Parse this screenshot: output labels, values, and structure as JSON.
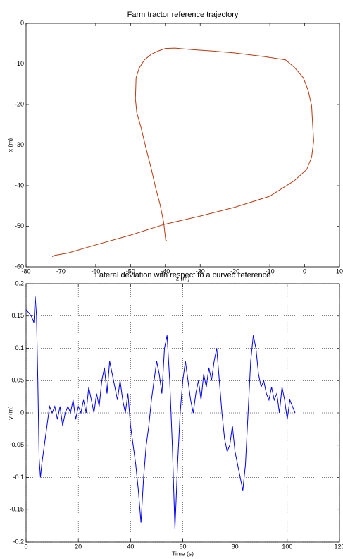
{
  "chart_data": [
    {
      "type": "line",
      "title": "Farm tractor reference trajectory",
      "xlabel": "z (m)",
      "ylabel": "x (m)",
      "xlim": [
        -80,
        10
      ],
      "xticks": [
        -80,
        -70,
        -60,
        -50,
        -40,
        -30,
        -20,
        -10,
        0,
        10
      ],
      "ylim": [
        -60,
        0
      ],
      "yticks": [
        -60,
        -50,
        -40,
        -30,
        -20,
        -10,
        0
      ],
      "grid": false,
      "series": [
        {
          "color": "#b83a10",
          "x": [
            -72.5,
            -71.9,
            -68,
            -60,
            -50,
            -40.5,
            -30,
            -20,
            -10,
            -6.9,
            -3,
            0.6,
            2,
            2.6,
            2.3,
            2,
            1,
            -0.4,
            -3,
            -5.5,
            -11.6,
            -20,
            -26.8,
            -32,
            -37.3,
            -40,
            -42,
            -44,
            -46,
            -47.5,
            -48.4,
            -48.6,
            -48.2,
            -47,
            -45.5,
            -44,
            -42.8,
            -41.5,
            -40.5,
            -39.9,
            -39.6
          ],
          "values": [
            -57.5,
            -57.2,
            -56.6,
            -54.6,
            -52.2,
            -49.6,
            -47.5,
            -45.3,
            -42.6,
            -40.9,
            -38.8,
            -36,
            -33,
            -29,
            -25,
            -20.3,
            -16.5,
            -13.4,
            -10.8,
            -9,
            -8.2,
            -7.3,
            -6.8,
            -6.5,
            -6.1,
            -6.2,
            -6.8,
            -7.6,
            -9,
            -11,
            -13.4,
            -18.6,
            -22,
            -25.6,
            -31,
            -36,
            -40.5,
            -44.7,
            -49,
            -53.4,
            -53.6
          ]
        }
      ]
    },
    {
      "type": "line",
      "title": "Lateral deviation with respect to a curved reference",
      "xlabel": "Time (s)",
      "ylabel": "y (m)",
      "xlim": [
        0,
        120
      ],
      "xticks": [
        0,
        20,
        40,
        60,
        80,
        100,
        120
      ],
      "ylim": [
        -0.2,
        0.2
      ],
      "yticks": [
        -0.2,
        -0.15,
        -0.1,
        -0.05,
        0,
        0.05,
        0.1,
        0.15,
        0.2
      ],
      "grid": true,
      "series": [
        {
          "color": "#0000ee",
          "x": [
            0,
            1,
            2,
            3,
            3.5,
            4,
            4.5,
            5,
            5.5,
            6,
            7,
            8,
            9,
            10,
            11,
            12,
            13,
            14,
            15,
            16,
            17,
            18,
            19,
            20,
            21,
            22,
            23,
            24,
            25,
            26,
            27,
            28,
            29,
            30,
            31,
            32,
            33,
            34,
            35,
            36,
            37,
            38,
            39,
            40,
            41,
            42,
            43,
            44,
            45,
            46,
            47,
            48,
            49,
            50,
            51,
            52,
            53,
            54,
            55,
            56,
            57,
            58,
            59,
            60,
            61,
            62,
            63,
            64,
            65,
            66,
            67,
            68,
            69,
            70,
            71,
            72,
            73,
            74,
            75,
            76,
            77,
            78,
            79,
            80,
            81,
            82,
            83,
            84,
            85,
            86,
            87,
            88,
            89,
            90,
            91,
            92,
            93,
            94,
            95,
            96,
            97,
            98,
            99,
            100,
            101,
            102,
            103
          ],
          "values": [
            0.16,
            0.155,
            0.15,
            0.14,
            0.18,
            0.15,
            0.05,
            -0.07,
            -0.1,
            -0.08,
            -0.05,
            -0.02,
            0.01,
            0,
            0.01,
            -0.01,
            0.01,
            -0.02,
            0,
            0.01,
            0,
            0.02,
            -0.01,
            0.01,
            0,
            0.02,
            0,
            0.04,
            0.02,
            0,
            0.03,
            0.01,
            0.05,
            0.07,
            0.03,
            0.08,
            0.06,
            0.04,
            0.02,
            0.05,
            0.02,
            0,
            0.03,
            -0.02,
            -0.05,
            -0.08,
            -0.12,
            -0.17,
            -0.1,
            -0.05,
            -0.02,
            0.02,
            0.05,
            0.08,
            0.06,
            0.03,
            0.1,
            0.12,
            0.05,
            -0.05,
            -0.18,
            -0.08,
            0,
            0.05,
            0.08,
            0.05,
            0.02,
            0,
            0.03,
            0.05,
            0.02,
            0.06,
            0.04,
            0.07,
            0.05,
            0.08,
            0.1,
            0.05,
            0,
            -0.04,
            -0.06,
            -0.05,
            -0.02,
            -0.06,
            -0.08,
            -0.1,
            -0.12,
            -0.08,
            0,
            0.08,
            0.12,
            0.1,
            0.06,
            0.04,
            0.05,
            0.03,
            0.02,
            0.04,
            0.02,
            0.03,
            0,
            0.04,
            0.02,
            -0.01,
            0.02,
            0.01,
            0
          ]
        }
      ]
    }
  ]
}
